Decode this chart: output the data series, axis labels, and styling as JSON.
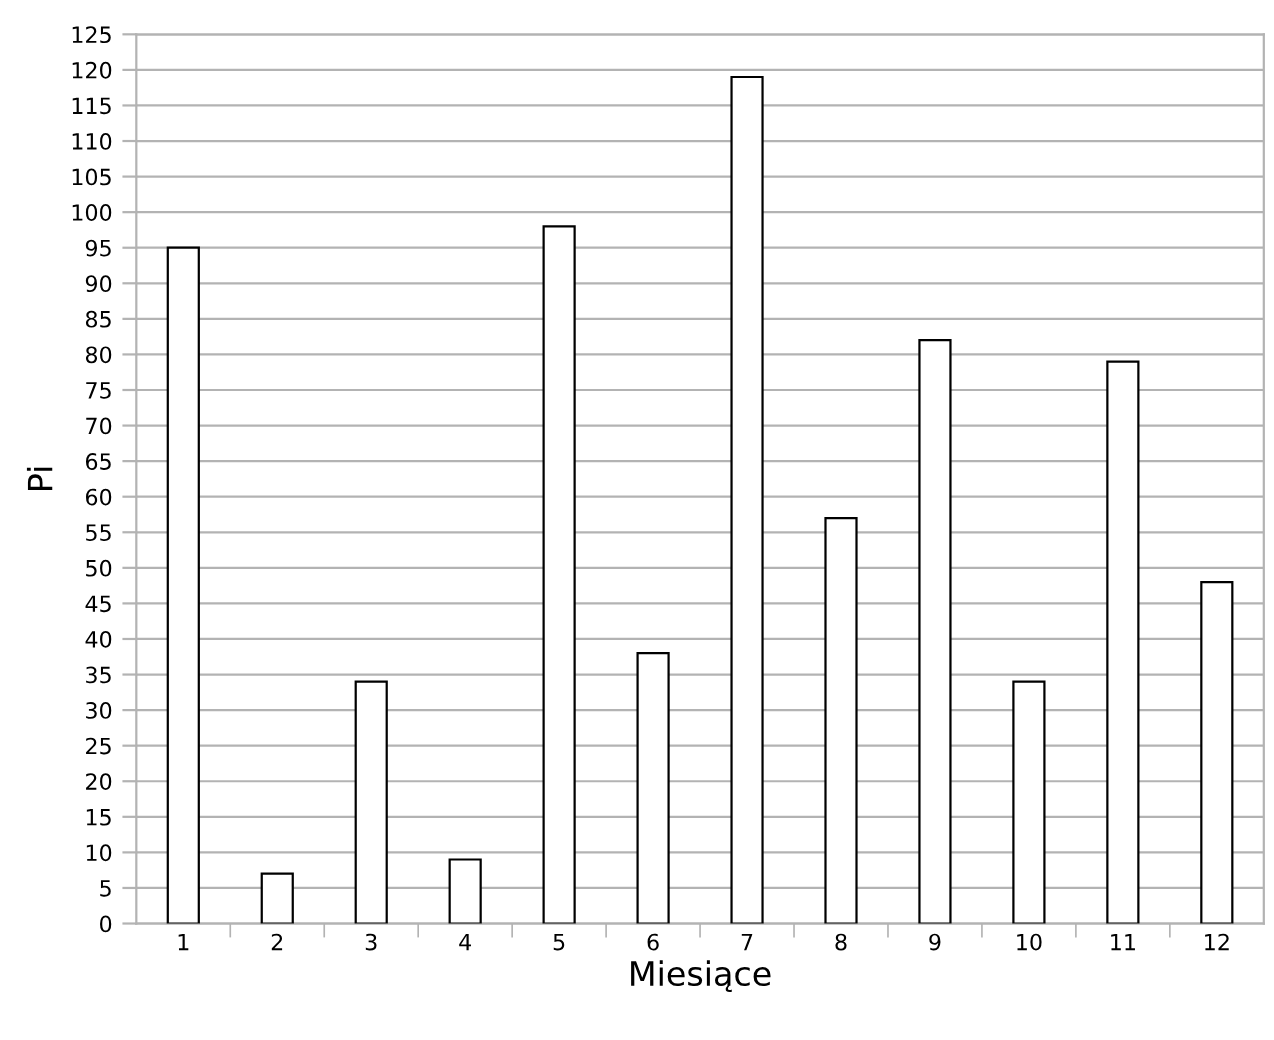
{
  "chart_data": {
    "type": "bar",
    "xlabel": "Miesiące",
    "ylabel": "Pi",
    "categories": [
      "1",
      "2",
      "3",
      "4",
      "5",
      "6",
      "7",
      "8",
      "9",
      "10",
      "11",
      "12"
    ],
    "values": [
      95,
      7,
      34,
      9,
      98,
      38,
      119,
      57,
      82,
      34,
      79,
      48
    ],
    "color": "#ffffff",
    "ylim": [
      0,
      125
    ],
    "yticks": [
      0,
      5,
      10,
      15,
      20,
      25,
      30,
      35,
      40,
      45,
      50,
      55,
      60,
      65,
      70,
      75,
      80,
      85,
      90,
      95,
      100,
      105,
      110,
      115,
      120,
      125
    ],
    "grid": "y"
  }
}
